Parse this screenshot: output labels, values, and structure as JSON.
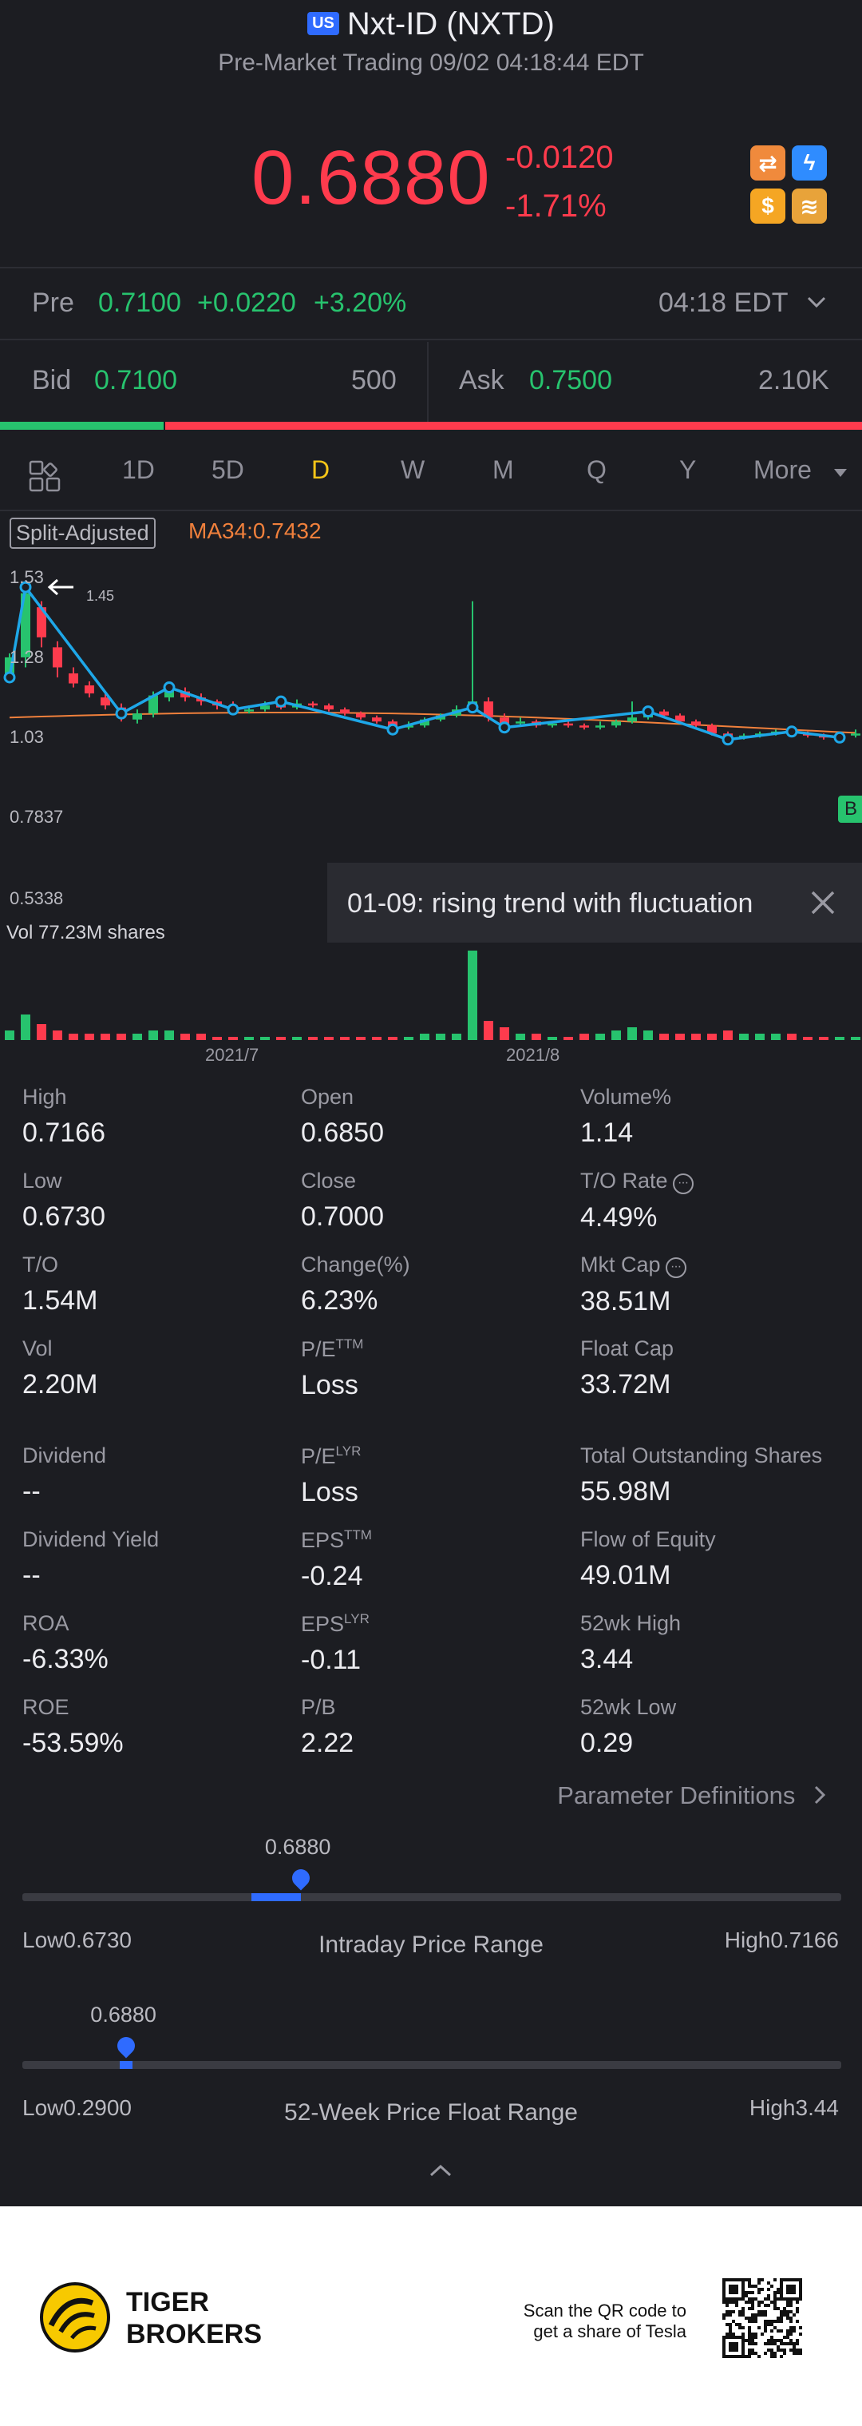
{
  "header": {
    "market_badge": "US",
    "title": "Nxt-ID (NXTD)",
    "subtitle": "Pre-Market Trading 09/02 04:18:44 EDT",
    "price": "0.6880",
    "change": "-0.0120",
    "change_pct": "-1.71%"
  },
  "quick_icons": [
    {
      "name": "swap-icon",
      "glyph": "⇄",
      "color": "#f08a3c"
    },
    {
      "name": "flash-icon",
      "glyph": "ϟ",
      "color": "#2f8cff"
    },
    {
      "name": "dollar-icon",
      "glyph": "$",
      "color": "#f5a623"
    },
    {
      "name": "stack-icon",
      "glyph": "≋",
      "color": "#e8a33a"
    }
  ],
  "pre": {
    "label": "Pre",
    "price": "0.7100",
    "change": "+0.0220",
    "change_pct": "+3.20%",
    "time": "04:18 EDT"
  },
  "bid": {
    "label": "Bid",
    "price": "0.7100",
    "size": "500"
  },
  "ask": {
    "label": "Ask",
    "price": "0.7500",
    "size": "2.10K"
  },
  "bid_ratio": 0.19,
  "tabs": [
    "1D",
    "5D",
    "D",
    "W",
    "M",
    "Q",
    "Y"
  ],
  "tabs_more": "More",
  "active_tab": "D",
  "chart": {
    "split_label": "Split-Adjusted",
    "ma_label": "MA34:0.7432",
    "y_labels": [
      "1.53",
      "1.28",
      "1.03",
      "0.7837",
      "0.5338"
    ],
    "peak_label": "1.45",
    "trend_text": "01-09: rising trend with fluctuation",
    "vol_label": "Vol   77.23M shares",
    "x_labels": [
      "2021/7",
      "2021/8"
    ],
    "edge_badge": "B"
  },
  "chart_data": {
    "type": "candlestick",
    "y_range": [
      0.5338,
      1.53
    ],
    "ma34": 0.7432,
    "candles": [
      {
        "o": 1.0,
        "c": 1.1,
        "h": 1.12,
        "l": 0.98,
        "v": 3
      },
      {
        "o": 1.1,
        "c": 1.42,
        "h": 1.45,
        "l": 1.05,
        "v": 8
      },
      {
        "o": 1.35,
        "c": 1.2,
        "h": 1.38,
        "l": 1.15,
        "v": 5
      },
      {
        "o": 1.15,
        "c": 1.05,
        "h": 1.18,
        "l": 1.0,
        "v": 3
      },
      {
        "o": 1.02,
        "c": 0.97,
        "h": 1.05,
        "l": 0.95,
        "v": 2
      },
      {
        "o": 0.96,
        "c": 0.92,
        "h": 0.98,
        "l": 0.9,
        "v": 2
      },
      {
        "o": 0.9,
        "c": 0.86,
        "h": 0.92,
        "l": 0.84,
        "v": 2
      },
      {
        "o": 0.85,
        "c": 0.8,
        "h": 0.87,
        "l": 0.78,
        "v": 2
      },
      {
        "o": 0.79,
        "c": 0.82,
        "h": 0.84,
        "l": 0.77,
        "v": 2
      },
      {
        "o": 0.82,
        "c": 0.91,
        "h": 0.93,
        "l": 0.8,
        "v": 3
      },
      {
        "o": 0.9,
        "c": 0.94,
        "h": 0.96,
        "l": 0.88,
        "v": 3
      },
      {
        "o": 0.93,
        "c": 0.9,
        "h": 0.95,
        "l": 0.88,
        "v": 2
      },
      {
        "o": 0.9,
        "c": 0.88,
        "h": 0.92,
        "l": 0.86,
        "v": 2
      },
      {
        "o": 0.88,
        "c": 0.86,
        "h": 0.89,
        "l": 0.84,
        "v": 1
      },
      {
        "o": 0.86,
        "c": 0.83,
        "h": 0.88,
        "l": 0.82,
        "v": 1
      },
      {
        "o": 0.83,
        "c": 0.84,
        "h": 0.86,
        "l": 0.82,
        "v": 1
      },
      {
        "o": 0.84,
        "c": 0.86,
        "h": 0.88,
        "l": 0.83,
        "v": 1
      },
      {
        "o": 0.86,
        "c": 0.85,
        "h": 0.88,
        "l": 0.84,
        "v": 1
      },
      {
        "o": 0.85,
        "c": 0.87,
        "h": 0.89,
        "l": 0.84,
        "v": 1
      },
      {
        "o": 0.87,
        "c": 0.86,
        "h": 0.88,
        "l": 0.85,
        "v": 1
      },
      {
        "o": 0.86,
        "c": 0.84,
        "h": 0.87,
        "l": 0.83,
        "v": 1
      },
      {
        "o": 0.84,
        "c": 0.82,
        "h": 0.85,
        "l": 0.81,
        "v": 1
      },
      {
        "o": 0.82,
        "c": 0.8,
        "h": 0.83,
        "l": 0.79,
        "v": 1
      },
      {
        "o": 0.8,
        "c": 0.78,
        "h": 0.81,
        "l": 0.77,
        "v": 1
      },
      {
        "o": 0.78,
        "c": 0.75,
        "h": 0.79,
        "l": 0.74,
        "v": 1
      },
      {
        "o": 0.75,
        "c": 0.76,
        "h": 0.78,
        "l": 0.74,
        "v": 1
      },
      {
        "o": 0.76,
        "c": 0.79,
        "h": 0.8,
        "l": 0.75,
        "v": 2
      },
      {
        "o": 0.79,
        "c": 0.81,
        "h": 0.82,
        "l": 0.78,
        "v": 2
      },
      {
        "o": 0.81,
        "c": 0.84,
        "h": 0.86,
        "l": 0.8,
        "v": 2
      },
      {
        "o": 0.84,
        "c": 0.88,
        "h": 1.38,
        "l": 0.83,
        "v": 28
      },
      {
        "o": 0.88,
        "c": 0.8,
        "h": 0.9,
        "l": 0.78,
        "v": 6
      },
      {
        "o": 0.8,
        "c": 0.77,
        "h": 0.82,
        "l": 0.76,
        "v": 4
      },
      {
        "o": 0.77,
        "c": 0.78,
        "h": 0.8,
        "l": 0.76,
        "v": 2
      },
      {
        "o": 0.78,
        "c": 0.76,
        "h": 0.79,
        "l": 0.75,
        "v": 2
      },
      {
        "o": 0.76,
        "c": 0.77,
        "h": 0.78,
        "l": 0.75,
        "v": 1
      },
      {
        "o": 0.77,
        "c": 0.76,
        "h": 0.78,
        "l": 0.75,
        "v": 1
      },
      {
        "o": 0.76,
        "c": 0.75,
        "h": 0.77,
        "l": 0.74,
        "v": 2
      },
      {
        "o": 0.75,
        "c": 0.76,
        "h": 0.78,
        "l": 0.74,
        "v": 2
      },
      {
        "o": 0.76,
        "c": 0.78,
        "h": 0.79,
        "l": 0.75,
        "v": 3
      },
      {
        "o": 0.78,
        "c": 0.8,
        "h": 0.88,
        "l": 0.77,
        "v": 4
      },
      {
        "o": 0.8,
        "c": 0.83,
        "h": 0.85,
        "l": 0.79,
        "v": 3
      },
      {
        "o": 0.83,
        "c": 0.81,
        "h": 0.84,
        "l": 0.8,
        "v": 2
      },
      {
        "o": 0.81,
        "c": 0.78,
        "h": 0.82,
        "l": 0.77,
        "v": 2
      },
      {
        "o": 0.78,
        "c": 0.76,
        "h": 0.79,
        "l": 0.75,
        "v": 2
      },
      {
        "o": 0.76,
        "c": 0.72,
        "h": 0.77,
        "l": 0.71,
        "v": 2
      },
      {
        "o": 0.72,
        "c": 0.7,
        "h": 0.73,
        "l": 0.69,
        "v": 3
      },
      {
        "o": 0.7,
        "c": 0.71,
        "h": 0.72,
        "l": 0.69,
        "v": 2
      },
      {
        "o": 0.71,
        "c": 0.72,
        "h": 0.73,
        "l": 0.7,
        "v": 2
      },
      {
        "o": 0.72,
        "c": 0.73,
        "h": 0.74,
        "l": 0.71,
        "v": 2
      },
      {
        "o": 0.73,
        "c": 0.72,
        "h": 0.74,
        "l": 0.71,
        "v": 2
      },
      {
        "o": 0.72,
        "c": 0.71,
        "h": 0.73,
        "l": 0.7,
        "v": 1
      },
      {
        "o": 0.71,
        "c": 0.7,
        "h": 0.72,
        "l": 0.69,
        "v": 1
      },
      {
        "o": 0.7,
        "c": 0.71,
        "h": 0.72,
        "l": 0.69,
        "v": 1
      },
      {
        "o": 0.71,
        "c": 0.72,
        "h": 0.74,
        "l": 0.7,
        "v": 1
      }
    ],
    "zigzag": [
      [
        0,
        1.0
      ],
      [
        1,
        1.45
      ],
      [
        7,
        0.82
      ],
      [
        10,
        0.95
      ],
      [
        14,
        0.84
      ],
      [
        17,
        0.88
      ],
      [
        24,
        0.74
      ],
      [
        29,
        0.85
      ],
      [
        31,
        0.75
      ],
      [
        40,
        0.83
      ],
      [
        45,
        0.69
      ],
      [
        49,
        0.73
      ],
      [
        52,
        0.7
      ]
    ]
  },
  "stats": [
    [
      {
        "label": "High",
        "value": "0.7166"
      },
      {
        "label": "Open",
        "value": "0.6850"
      },
      {
        "label": "Volume%",
        "value": "1.14"
      }
    ],
    [
      {
        "label": "Low",
        "value": "0.6730"
      },
      {
        "label": "Close",
        "value": "0.7000"
      },
      {
        "label": "T/O Rate",
        "value": "4.49%",
        "info": true
      }
    ],
    [
      {
        "label": "T/O",
        "value": "1.54M"
      },
      {
        "label": "Change(%)",
        "value": "6.23%"
      },
      {
        "label": "Mkt Cap",
        "value": "38.51M",
        "info": true
      }
    ],
    [
      {
        "label": "Vol",
        "value": "2.20M"
      },
      {
        "label": "P/E",
        "sup": "TTM",
        "value": "Loss"
      },
      {
        "label": "Float Cap",
        "value": "33.72M"
      }
    ],
    [
      {
        "label": "Dividend",
        "value": "--"
      },
      {
        "label": "P/E",
        "sup": "LYR",
        "value": "Loss"
      },
      {
        "label": "Total Outstanding Shares",
        "value": "55.98M"
      }
    ],
    [
      {
        "label": "Dividend Yield",
        "value": "--"
      },
      {
        "label": "EPS",
        "sup": "TTM",
        "value": "-0.24"
      },
      {
        "label": "Flow of Equity",
        "value": "49.01M"
      }
    ],
    [
      {
        "label": "ROA",
        "value": "-6.33%"
      },
      {
        "label": "EPS",
        "sup": "LYR",
        "value": "-0.11"
      },
      {
        "label": "52wk High",
        "value": "3.44"
      }
    ],
    [
      {
        "label": "ROE",
        "value": "-53.59%"
      },
      {
        "label": "P/B",
        "value": "2.22"
      },
      {
        "label": "52wk Low",
        "value": "0.29"
      }
    ]
  ],
  "param_def": "Parameter Definitions",
  "intraday": {
    "title": "Intraday Price Range",
    "low": "Low0.6730",
    "high": "High0.7166",
    "current": "0.6880",
    "fill_start": 0.28,
    "fill_end": 0.34,
    "position": 0.34
  },
  "week52": {
    "title": "52-Week Price Float Range",
    "low": "Low0.2900",
    "high": "High3.44",
    "current": "0.6880",
    "position": 0.127
  },
  "footer": {
    "brand_line1": "TIGER",
    "brand_line2": "BROKERS",
    "scan_line1": "Scan the QR code to",
    "scan_line2": "get a share of Tesla"
  },
  "colors": {
    "up": "#27c36e",
    "down": "#ff3b4d",
    "ma": "#f0803c",
    "zigzag": "#1ea7e8",
    "accent": "#2f6bff"
  }
}
